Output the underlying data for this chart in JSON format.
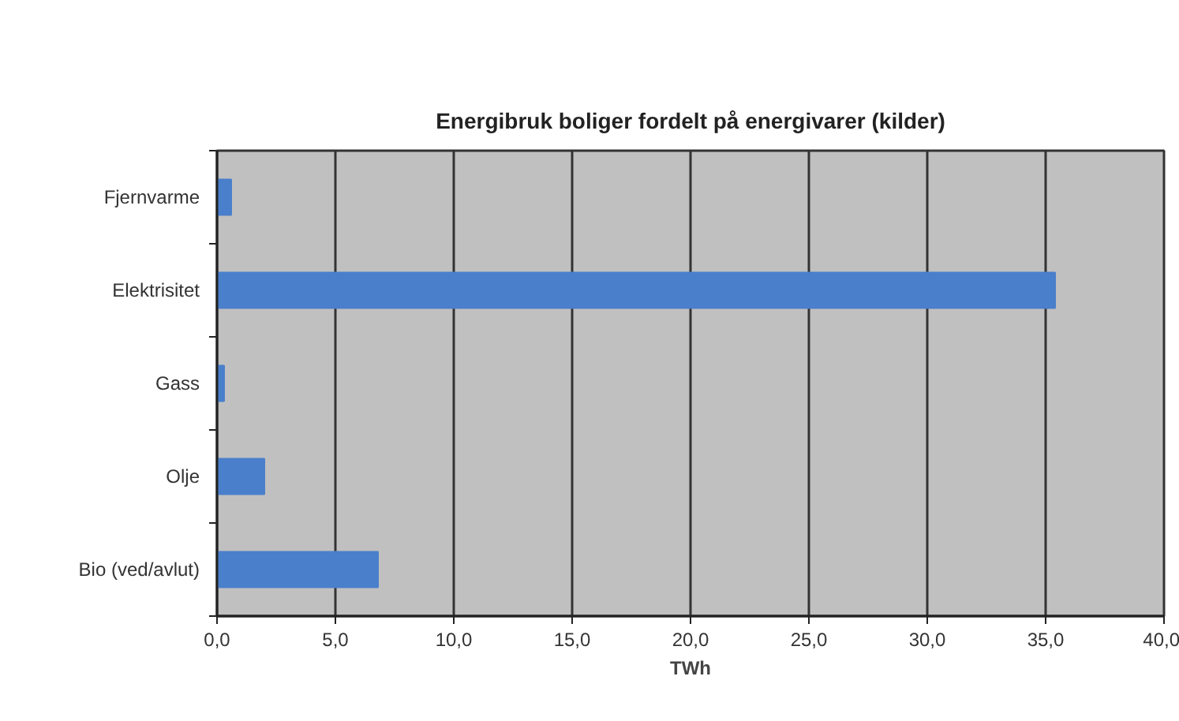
{
  "chart_data": {
    "type": "bar",
    "orientation": "horizontal",
    "title": "Energibruk boliger fordelt på energivarer (kilder)",
    "xlabel": "TWh",
    "categories": [
      "Fjernvarme",
      "Elektrisitet",
      "Gass",
      "Olje",
      "Bio (ved/avlut)"
    ],
    "values": [
      0.6,
      35.4,
      0.3,
      2.0,
      6.8
    ],
    "color": "#4a7fcb",
    "xlim": [
      0,
      40
    ],
    "xticks": [
      {
        "value": 0,
        "label": "0,0"
      },
      {
        "value": 5,
        "label": "5,0"
      },
      {
        "value": 10,
        "label": "10,0"
      },
      {
        "value": 15,
        "label": "15,0"
      },
      {
        "value": 20,
        "label": "20,0"
      },
      {
        "value": 25,
        "label": "25,0"
      },
      {
        "value": 30,
        "label": "30,0"
      },
      {
        "value": 35,
        "label": "35,0"
      },
      {
        "value": 40,
        "label": "40,0"
      }
    ],
    "grid": "x"
  }
}
